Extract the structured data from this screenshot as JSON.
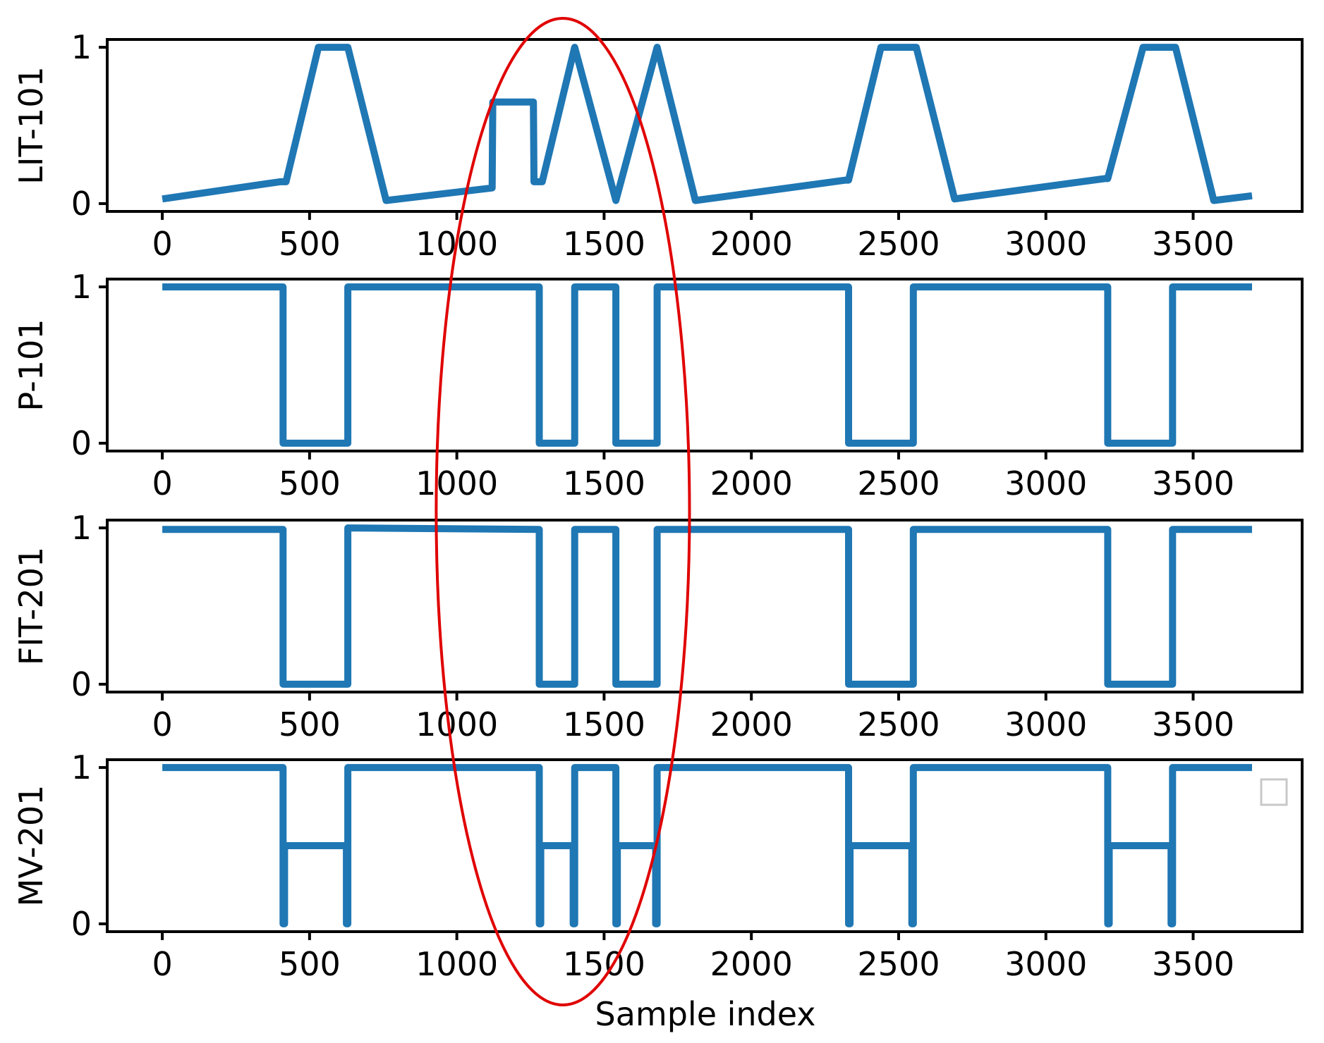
{
  "chart_data": {
    "type": "line",
    "xlabel": "Sample index",
    "xlim": [
      -187,
      3870
    ],
    "xticks": [
      0,
      500,
      1000,
      1500,
      2000,
      2500,
      3000,
      3500
    ],
    "series_color": "#1f77b4",
    "highlight_color": "#e00000",
    "highlight_region": {
      "x_center": 1360,
      "x_half_width": 430,
      "panels": "all"
    },
    "legend": {
      "placement": "right",
      "entries": []
    },
    "panels": [
      {
        "ylabel": "LIT-101",
        "ylim": [
          -0.05,
          1.05
        ],
        "yticks": [
          0,
          1
        ],
        "x": [
          0,
          400,
          420,
          530,
          630,
          760,
          1120,
          1122,
          1260,
          1262,
          1290,
          1400,
          1540,
          1680,
          1810,
          2320,
          2330,
          2440,
          2560,
          2690,
          3200,
          3210,
          3330,
          3440,
          3570,
          3700
        ],
        "y": [
          0.03,
          0.14,
          0.14,
          1.0,
          1.0,
          0.02,
          0.1,
          0.65,
          0.65,
          0.14,
          0.14,
          1.0,
          0.02,
          1.0,
          0.02,
          0.15,
          0.15,
          1.0,
          1.0,
          0.03,
          0.16,
          0.16,
          1.0,
          1.0,
          0.02,
          0.05
        ]
      },
      {
        "ylabel": "P-101",
        "ylim": [
          -0.05,
          1.05
        ],
        "yticks": [
          0,
          1
        ],
        "x": [
          0,
          410,
          410,
          630,
          630,
          1280,
          1280,
          1400,
          1400,
          1540,
          1540,
          1680,
          1680,
          2330,
          2330,
          2550,
          2550,
          3210,
          3210,
          3430,
          3430,
          3700
        ],
        "y": [
          1,
          1,
          0,
          0,
          1,
          1,
          0,
          0,
          1,
          1,
          0,
          0,
          1,
          1,
          0,
          0,
          1,
          1,
          0,
          0,
          1,
          1
        ]
      },
      {
        "ylabel": "FIT-201",
        "ylim": [
          -0.05,
          1.05
        ],
        "yticks": [
          0,
          1
        ],
        "x": [
          0,
          410,
          410,
          630,
          630,
          1280,
          1280,
          1400,
          1400,
          1540,
          1540,
          1680,
          1680,
          2330,
          2330,
          2550,
          2550,
          3210,
          3210,
          3430,
          3430,
          3700
        ],
        "y": [
          0.99,
          0.99,
          0,
          0,
          1.0,
          0.99,
          0,
          0,
          0.99,
          0.99,
          0,
          0,
          0.99,
          0.99,
          0,
          0,
          0.99,
          0.99,
          0,
          0,
          0.99,
          0.99
        ]
      },
      {
        "ylabel": "MV-201",
        "ylim": [
          -0.05,
          1.05
        ],
        "yticks": [
          0,
          1
        ],
        "x": [
          0,
          410,
          410,
          415,
          415,
          625,
          625,
          630,
          630,
          1280,
          1280,
          1285,
          1285,
          1395,
          1395,
          1400,
          1400,
          1540,
          1540,
          1545,
          1545,
          1675,
          1675,
          1680,
          1680,
          2330,
          2330,
          2335,
          2335,
          2545,
          2545,
          2550,
          2550,
          3210,
          3210,
          3215,
          3215,
          3425,
          3425,
          3430,
          3430,
          3700
        ],
        "y": [
          1,
          1,
          0,
          0,
          0.5,
          0.5,
          0,
          0,
          1,
          1,
          0,
          0,
          0.5,
          0.5,
          0,
          0,
          1,
          1,
          0,
          0,
          0.5,
          0.5,
          0,
          0,
          1,
          1,
          0,
          0,
          0.5,
          0.5,
          0,
          0,
          1,
          1,
          0,
          0,
          0.5,
          0.5,
          0,
          0,
          1,
          1
        ]
      }
    ]
  }
}
